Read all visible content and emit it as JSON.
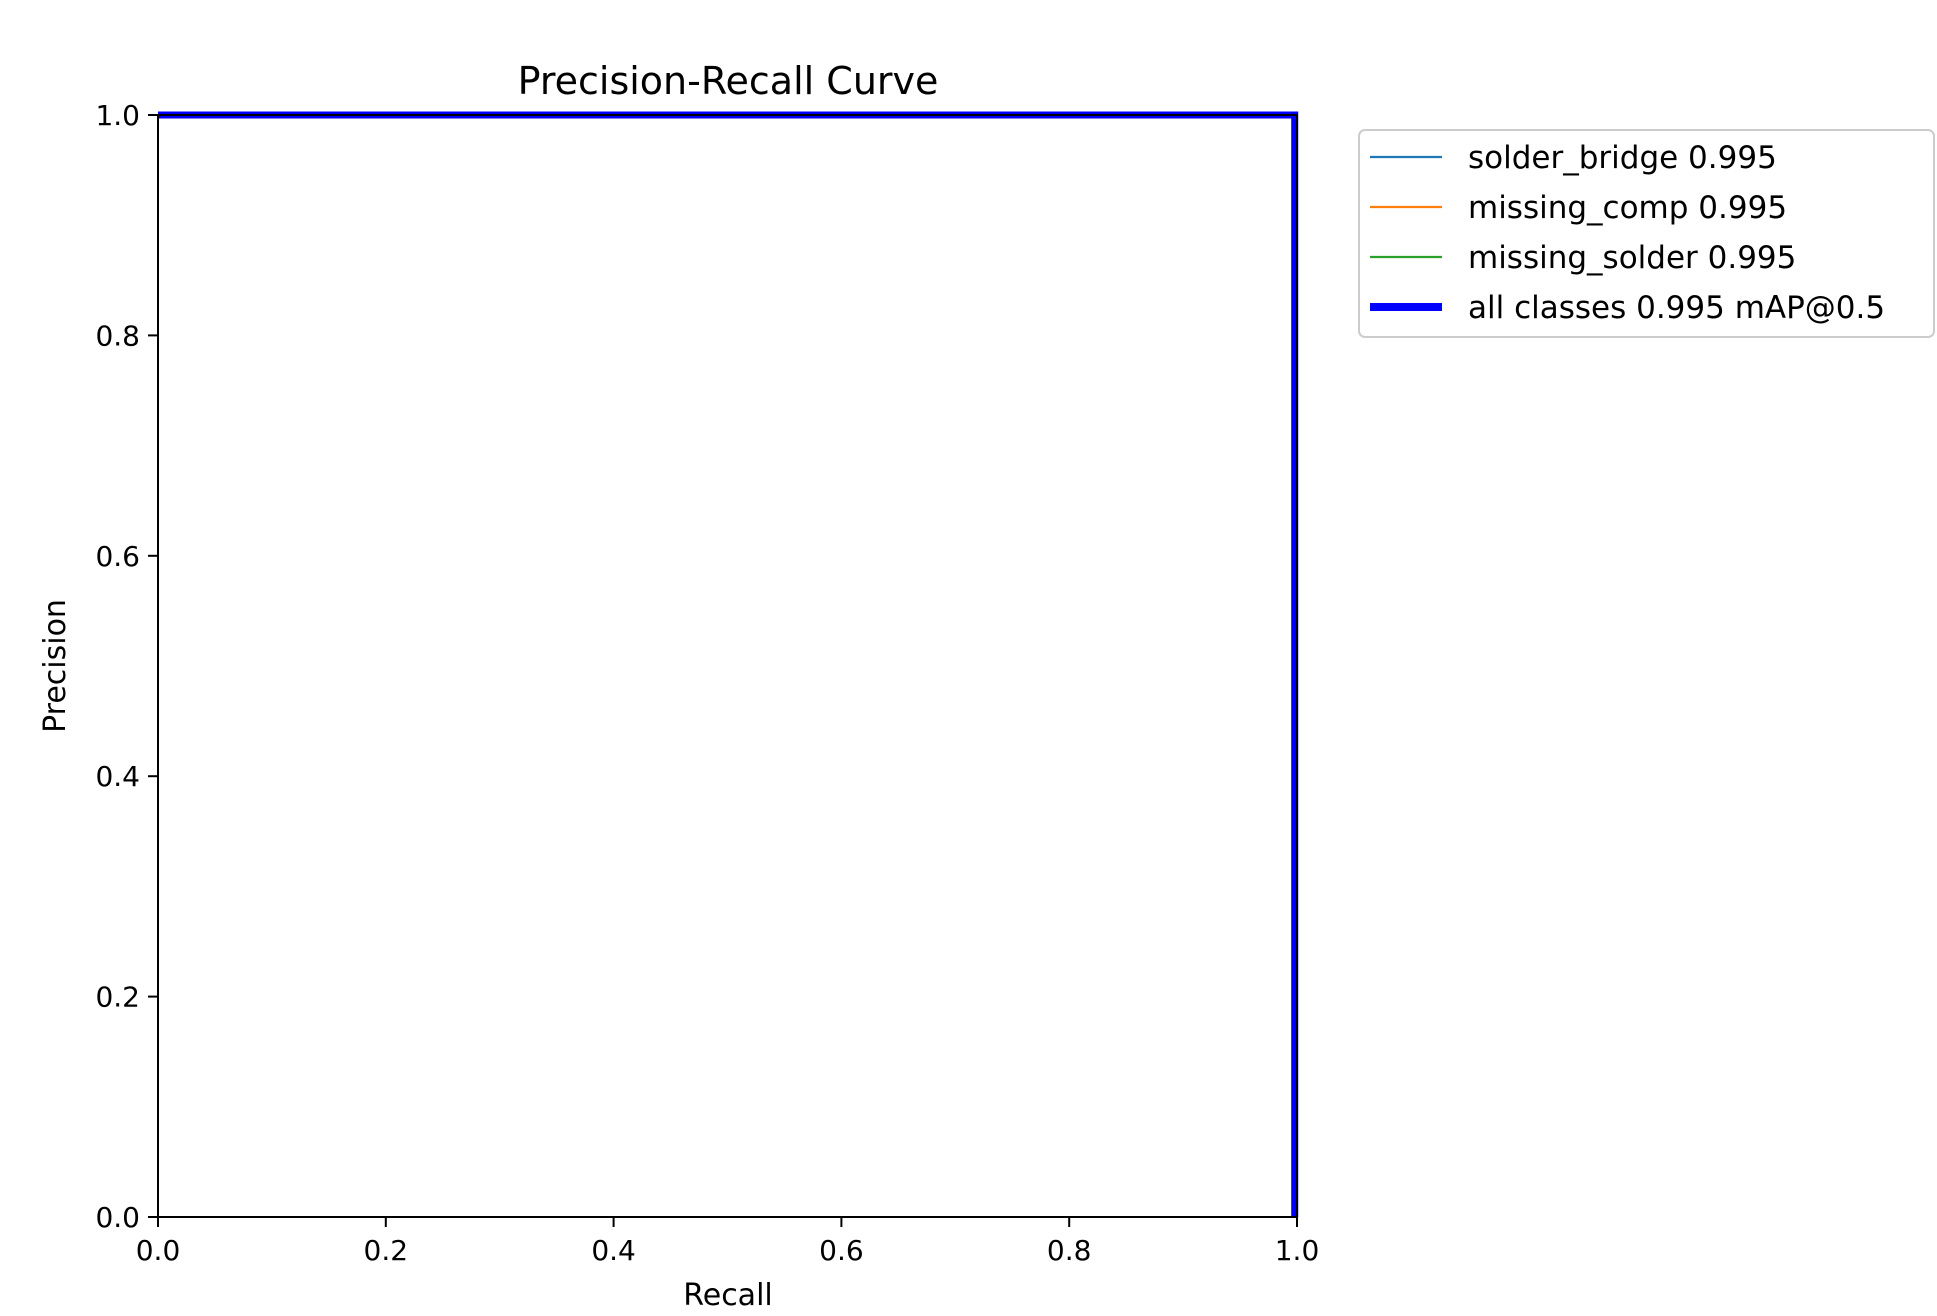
{
  "chart_data": {
    "type": "line",
    "title": "Precision-Recall Curve",
    "xlabel": "Recall",
    "ylabel": "Precision",
    "xlim": [
      0,
      1
    ],
    "ylim": [
      0,
      1
    ],
    "xticks": [
      "0.0",
      "0.2",
      "0.4",
      "0.6",
      "0.8",
      "1.0"
    ],
    "yticks": [
      "0.0",
      "0.2",
      "0.4",
      "0.6",
      "0.8",
      "1.0"
    ],
    "grid": false,
    "legend_position": "outside-top-right",
    "series": [
      {
        "name": "solder_bridge 0.995",
        "color": "#1f77b4",
        "x": [
          0,
          0.998,
          0.998
        ],
        "y": [
          1,
          1,
          0
        ]
      },
      {
        "name": "missing_comp 0.995",
        "color": "#ff7f0e",
        "x": [
          0,
          0.998,
          0.998
        ],
        "y": [
          1,
          1,
          0
        ]
      },
      {
        "name": "missing_solder 0.995",
        "color": "#2ca02c",
        "x": [
          0,
          0.998,
          0.998
        ],
        "y": [
          1,
          1,
          0
        ]
      },
      {
        "name": "all classes 0.995 mAP@0.5",
        "color": "#0000ff",
        "bold": true,
        "x": [
          0,
          0.998,
          0.998
        ],
        "y": [
          1,
          1,
          0
        ]
      }
    ]
  }
}
